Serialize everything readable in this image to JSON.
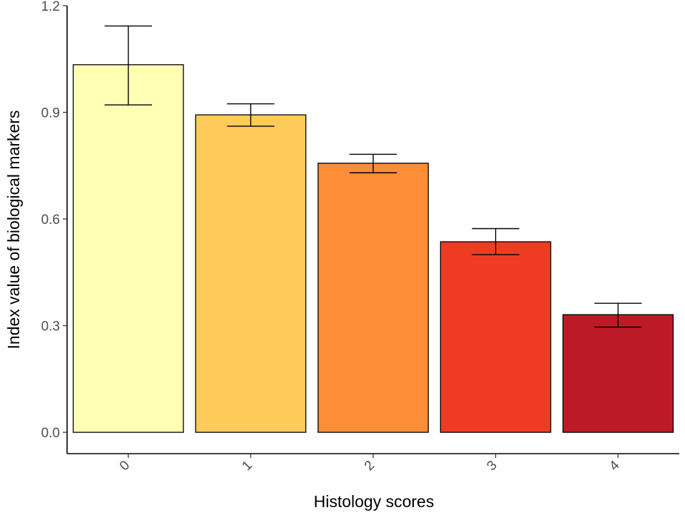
{
  "chart_data": {
    "type": "bar",
    "title": "",
    "xlabel": "Histology scores",
    "ylabel": "Index value of biological markers",
    "categories": [
      "0",
      "1",
      "2",
      "3",
      "4"
    ],
    "values": [
      1.034,
      0.893,
      0.757,
      0.536,
      0.331
    ],
    "error_low": [
      0.921,
      0.861,
      0.73,
      0.5,
      0.296
    ],
    "error_high": [
      1.143,
      0.924,
      0.782,
      0.573,
      0.363
    ],
    "colors": [
      "#FFFFB4",
      "#FECA5A",
      "#FD8D37",
      "#F03B23",
      "#BC1A27"
    ],
    "ylim": [
      -0.06,
      1.2
    ],
    "yticks": [
      "0.0",
      "0.3",
      "0.6",
      "0.9",
      "1.2"
    ],
    "grid": false,
    "legend": "none"
  }
}
